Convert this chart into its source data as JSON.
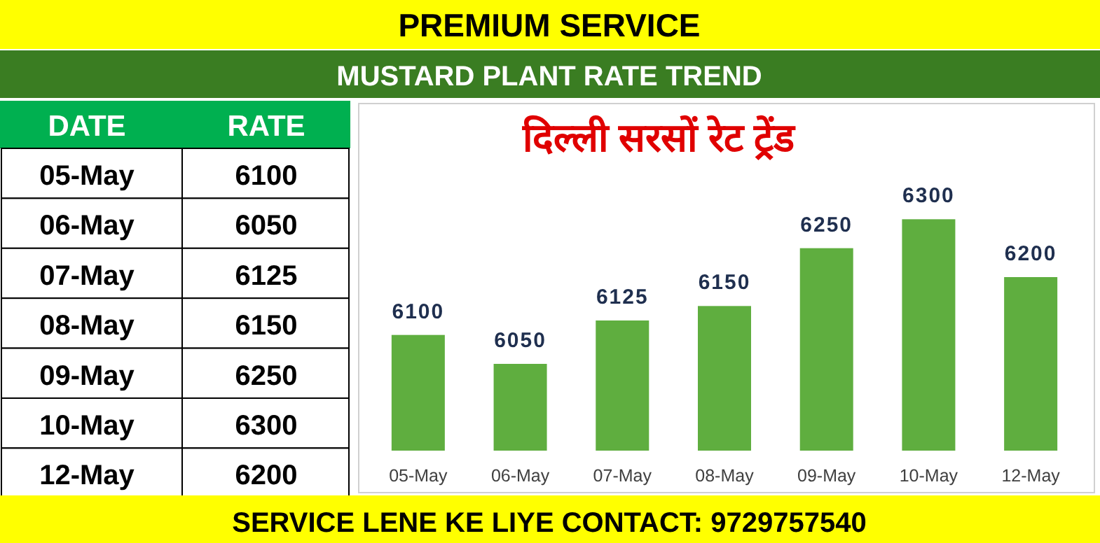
{
  "chart_data": [
    {
      "type": "other",
      "categories": [
        "05-May",
        "06-May",
        "07-May",
        "08-May",
        "09-May",
        "10-May",
        "12-May"
      ],
      "values": [
        6100,
        6050,
        6125,
        6150,
        6250,
        6300,
        6200
      ],
      "data_labels": true,
      "annotations": [
        "DATE",
        "RATE"
      ]
    },
    {
      "type": "bar",
      "title": "PREMIUM SERVICE",
      "subtitle": "MUSTARD PLANT RATE TREND",
      "categories": [
        "05-May",
        "06-May",
        "07-May",
        "08-May",
        "09-May",
        "10-May",
        "12-May"
      ],
      "values": [
        6100,
        6050,
        6125,
        6150,
        6250,
        6300,
        6200
      ],
      "color": "#5fae3f",
      "ylim": [
        5900,
        6500
      ],
      "data_labels": true,
      "grid": false,
      "legend": false,
      "annotations": [
        "दिल्ली सरसों रेट ट्रेंड",
        "SERVICE LENE KE LIYE CONTACT: 9729757540"
      ]
    }
  ]
}
